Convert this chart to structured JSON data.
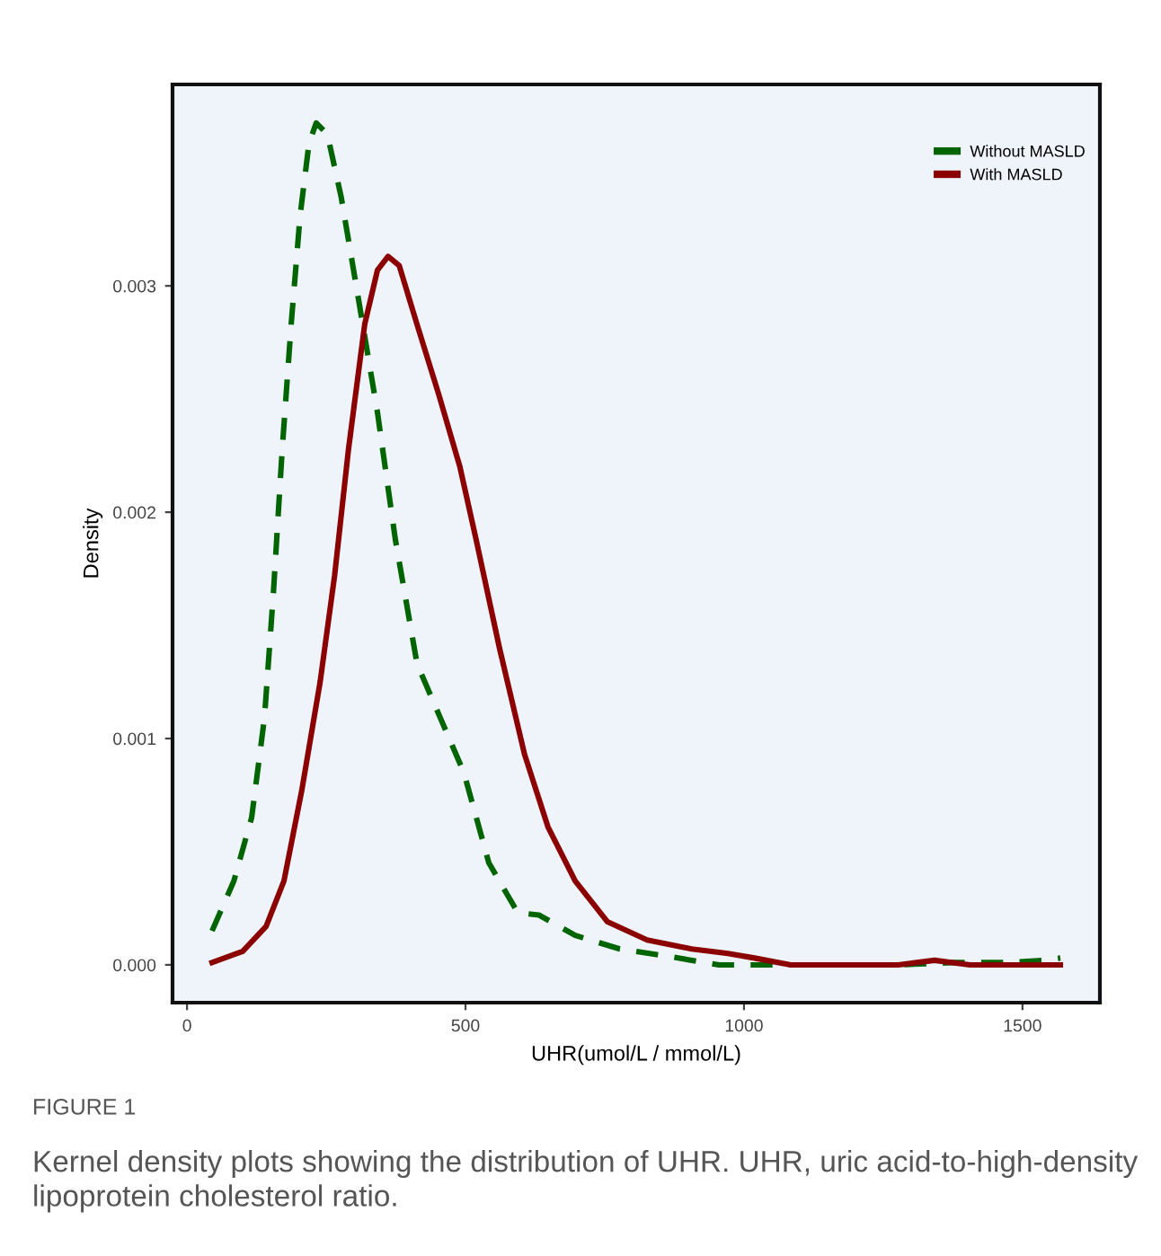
{
  "chart_data": {
    "type": "line",
    "xlabel": "UHR(umol/L / mmol/L)",
    "ylabel": "Density",
    "xlim": [
      -26,
      1639
    ],
    "ylim": [
      -0.000167,
      0.00389
    ],
    "xticks": [
      0,
      500,
      1000,
      1500
    ],
    "yticks": [
      {
        "value": 0,
        "label": "0.000"
      },
      {
        "value": 0.001,
        "label": "0.001"
      },
      {
        "value": 0.002,
        "label": "0.002"
      },
      {
        "value": 0.003,
        "label": "0.003"
      }
    ],
    "grid": false,
    "legend": "top right",
    "marker": "none",
    "series": [
      {
        "name": "Without MASLD",
        "color": "#006400",
        "line_style": "dashed",
        "x": [
          45,
          84,
          116,
          139,
          155,
          171,
          187,
          203,
          219,
          232,
          252,
          277,
          310,
          342,
          374,
          413,
          455,
          497,
          542,
          594,
          632,
          697,
          777,
          858,
          955,
          1277,
          1374,
          1471,
          1535,
          1568
        ],
        "values": [
          0.00015,
          0.00037,
          0.00065,
          0.00109,
          0.00164,
          0.00228,
          0.00283,
          0.00331,
          0.00363,
          0.00372,
          0.00367,
          0.00339,
          0.00291,
          0.00244,
          0.00188,
          0.00133,
          0.00109,
          0.00085,
          0.00045,
          0.00023,
          0.00022,
          0.00013,
          7e-05,
          4e-05,
          0.0,
          0.0,
          1e-05,
          1e-05,
          2e-05,
          3e-05
        ]
      },
      {
        "name": "With MASLD",
        "color": "#8b0000",
        "line_style": "solid",
        "x": [
          45,
          100,
          142,
          174,
          206,
          239,
          265,
          290,
          319,
          342,
          361,
          381,
          413,
          452,
          490,
          519,
          561,
          606,
          648,
          697,
          755,
          826,
          906,
          971,
          1019,
          1084,
          1277,
          1342,
          1406,
          1568
        ],
        "values": [
          1e-05,
          6e-05,
          0.00017,
          0.00037,
          0.00077,
          0.00125,
          0.00172,
          0.00228,
          0.00283,
          0.00307,
          0.00313,
          0.00309,
          0.00283,
          0.00252,
          0.0022,
          0.00188,
          0.0014,
          0.00093,
          0.00061,
          0.00037,
          0.00019,
          0.00011,
          7e-05,
          5e-05,
          3e-05,
          0.0,
          0.0,
          2e-05,
          0.0,
          0.0
        ]
      }
    ],
    "annotations": [
      "FIGURE 1",
      "Kernel density plots showing the distribution of UHR. UHR, uric acid-to-high-density lipoprotein cholesterol ratio."
    ]
  }
}
